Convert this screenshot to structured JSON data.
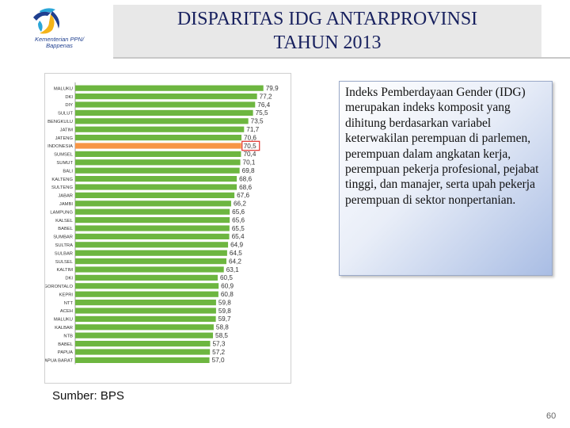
{
  "header": {
    "title_line1": "DISPARITAS IDG ANTARPROVINSI",
    "title_line2": "TAHUN 2013",
    "logo_text_line1": "Kementerian PPN/",
    "logo_text_line2": "Bappenas"
  },
  "info_box": {
    "text": "Indeks Pemberdayaan Gender (IDG) merupakan indeks komposit yang dihitung berdasarkan variabel keterwakilan perempuan di parlemen, perempuan dalam angkatan kerja, perempuan pekerja profesional, pejabat tinggi, dan manajer, serta upah pekerja perempuan di sektor nonpertanian."
  },
  "source": "Sumber: BPS",
  "page_number": "60",
  "colors": {
    "bar": "#6db640",
    "highlight_bar": "#f79646",
    "highlight_box": "#e0302a",
    "title_text": "#17205e"
  },
  "chart_data": {
    "type": "bar",
    "orientation": "horizontal",
    "categories": [
      "MALUKU",
      "DKI",
      "DIY",
      "SULUT",
      "BENGKULU",
      "JATIM",
      "JATENG",
      "INDONESIA",
      "SUMSEL",
      "SUMUT",
      "BALI",
      "KALTENG",
      "SULTENG",
      "JABAR",
      "JAMBI",
      "LAMPUNG",
      "KALSEL",
      "BABEL",
      "SUMBAR",
      "SULTRA",
      "SULBAR",
      "SULSEL",
      "KALTIM",
      "DKI",
      "GORONTALO",
      "KEPRI",
      "NTT",
      "ACEH",
      "MALUKU",
      "KALBAR",
      "NTB",
      "BABEL",
      "PAPUA",
      "PAPUA BARAT"
    ],
    "values": [
      79.9,
      77.2,
      76.4,
      75.5,
      73.5,
      71.7,
      70.6,
      70.5,
      70.4,
      70.1,
      69.8,
      68.6,
      68.6,
      67.6,
      66.2,
      65.6,
      65.6,
      65.5,
      65.4,
      64.9,
      64.5,
      64.2,
      63.1,
      60.5,
      60.9,
      60.8,
      59.8,
      59.8,
      59.7,
      58.8,
      58.5,
      57.3,
      57.2,
      57.0
    ],
    "value_labels": [
      "79,9",
      "77,2",
      "76,4",
      "75,5",
      "73,5",
      "71,7",
      "70,6",
      "70,5",
      "70,4",
      "70,1",
      "69,8",
      "68,6",
      "68,6",
      "67,6",
      "66,2",
      "65,6",
      "65,6",
      "65,5",
      "65,4",
      "64,9",
      "64,5",
      "64,2",
      "63,1",
      "60,5",
      "60,9",
      "60,8",
      "59,8",
      "59,8",
      "59,7",
      "58,8",
      "58,5",
      "57,3",
      "57,2",
      "57,0"
    ],
    "highlight_index": 7,
    "xlim": [
      0,
      80
    ]
  }
}
